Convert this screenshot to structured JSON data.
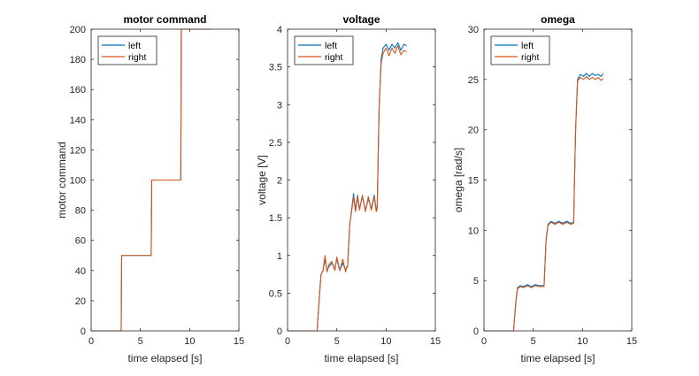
{
  "colors": {
    "left": "#0072BD",
    "right": "#D95319",
    "axis": "#262626",
    "background": "#ffffff"
  },
  "chart_data": [
    {
      "type": "line",
      "title": "motor command",
      "xlabel": "time elapsed [s]",
      "ylabel": "motor command",
      "xlim": [
        0,
        15
      ],
      "ylim": [
        0,
        200
      ],
      "xticks": [
        "0",
        "5",
        "10",
        "15"
      ],
      "yticks": [
        "0",
        "20",
        "40",
        "60",
        "80",
        "100",
        "120",
        "140",
        "160",
        "180",
        "200"
      ],
      "grid": false,
      "legend_position": "top-left",
      "series": [
        {
          "name": "left",
          "points": [
            [
              0,
              0
            ],
            [
              3.05,
              0
            ],
            [
              3.1,
              50
            ],
            [
              6.1,
              50
            ],
            [
              6.15,
              100
            ],
            [
              9.1,
              100
            ],
            [
              9.15,
              200
            ],
            [
              12.1,
              200
            ]
          ]
        },
        {
          "name": "right",
          "points": [
            [
              0,
              0
            ],
            [
              3.05,
              0
            ],
            [
              3.1,
              50
            ],
            [
              6.1,
              50
            ],
            [
              6.15,
              100
            ],
            [
              9.1,
              100
            ],
            [
              9.15,
              200
            ],
            [
              12.1,
              200
            ]
          ]
        }
      ]
    },
    {
      "type": "line",
      "title": "voltage",
      "xlabel": "time elapsed [s]",
      "ylabel": "voltage [V]",
      "xlim": [
        0,
        15
      ],
      "ylim": [
        0,
        4
      ],
      "xticks": [
        "0",
        "5",
        "10",
        "15"
      ],
      "yticks": [
        "0",
        "0.5",
        "1",
        "1.5",
        "2",
        "2.5",
        "3",
        "3.5",
        "4"
      ],
      "grid": false,
      "legend_position": "top-left",
      "series": [
        {
          "name": "left",
          "points": [
            [
              0,
              0
            ],
            [
              3.0,
              0
            ],
            [
              3.2,
              0.4
            ],
            [
              3.4,
              0.75
            ],
            [
              3.6,
              0.8
            ],
            [
              3.8,
              0.95
            ],
            [
              4.0,
              0.8
            ],
            [
              4.2,
              0.85
            ],
            [
              4.5,
              0.9
            ],
            [
              4.8,
              0.82
            ],
            [
              5.0,
              0.95
            ],
            [
              5.3,
              0.8
            ],
            [
              5.6,
              0.9
            ],
            [
              5.9,
              0.8
            ],
            [
              6.0,
              0.85
            ],
            [
              6.1,
              0.85
            ],
            [
              6.3,
              1.4
            ],
            [
              6.5,
              1.6
            ],
            [
              6.7,
              1.82
            ],
            [
              6.9,
              1.6
            ],
            [
              7.1,
              1.8
            ],
            [
              7.3,
              1.62
            ],
            [
              7.6,
              1.78
            ],
            [
              7.9,
              1.6
            ],
            [
              8.2,
              1.75
            ],
            [
              8.5,
              1.62
            ],
            [
              8.8,
              1.8
            ],
            [
              9.0,
              1.6
            ],
            [
              9.1,
              1.65
            ],
            [
              9.3,
              3.0
            ],
            [
              9.5,
              3.6
            ],
            [
              9.7,
              3.75
            ],
            [
              10.0,
              3.8
            ],
            [
              10.3,
              3.72
            ],
            [
              10.6,
              3.8
            ],
            [
              10.9,
              3.75
            ],
            [
              11.2,
              3.82
            ],
            [
              11.5,
              3.72
            ],
            [
              11.8,
              3.8
            ],
            [
              12.1,
              3.78
            ]
          ]
        },
        {
          "name": "right",
          "points": [
            [
              0,
              0
            ],
            [
              3.0,
              0
            ],
            [
              3.2,
              0.4
            ],
            [
              3.4,
              0.75
            ],
            [
              3.6,
              0.8
            ],
            [
              3.8,
              1.0
            ],
            [
              4.0,
              0.78
            ],
            [
              4.2,
              0.88
            ],
            [
              4.5,
              0.92
            ],
            [
              4.8,
              0.8
            ],
            [
              5.0,
              0.98
            ],
            [
              5.3,
              0.8
            ],
            [
              5.6,
              0.95
            ],
            [
              5.9,
              0.78
            ],
            [
              6.0,
              0.85
            ],
            [
              6.1,
              0.85
            ],
            [
              6.3,
              1.4
            ],
            [
              6.5,
              1.58
            ],
            [
              6.7,
              1.78
            ],
            [
              6.9,
              1.58
            ],
            [
              7.1,
              1.78
            ],
            [
              7.3,
              1.6
            ],
            [
              7.6,
              1.8
            ],
            [
              7.9,
              1.58
            ],
            [
              8.2,
              1.78
            ],
            [
              8.5,
              1.6
            ],
            [
              8.8,
              1.78
            ],
            [
              9.0,
              1.58
            ],
            [
              9.1,
              1.62
            ],
            [
              9.3,
              3.0
            ],
            [
              9.5,
              3.55
            ],
            [
              9.7,
              3.68
            ],
            [
              10.0,
              3.75
            ],
            [
              10.3,
              3.65
            ],
            [
              10.6,
              3.75
            ],
            [
              10.9,
              3.68
            ],
            [
              11.2,
              3.78
            ],
            [
              11.5,
              3.66
            ],
            [
              11.8,
              3.72
            ],
            [
              12.1,
              3.7
            ]
          ]
        }
      ]
    },
    {
      "type": "line",
      "title": "omega",
      "xlabel": "time elapsed [s]",
      "ylabel": "omega [rad/s]",
      "xlim": [
        0,
        15
      ],
      "ylim": [
        0,
        30
      ],
      "xticks": [
        "0",
        "5",
        "10",
        "15"
      ],
      "yticks": [
        "0",
        "5",
        "10",
        "15",
        "20",
        "25",
        "30"
      ],
      "grid": false,
      "legend_position": "top-left",
      "series": [
        {
          "name": "left",
          "points": [
            [
              0,
              0
            ],
            [
              3.0,
              0
            ],
            [
              3.2,
              2.5
            ],
            [
              3.4,
              4.3
            ],
            [
              3.7,
              4.5
            ],
            [
              4.0,
              4.4
            ],
            [
              4.4,
              4.6
            ],
            [
              4.8,
              4.4
            ],
            [
              5.2,
              4.6
            ],
            [
              5.6,
              4.5
            ],
            [
              6.0,
              4.5
            ],
            [
              6.1,
              4.5
            ],
            [
              6.3,
              9.0
            ],
            [
              6.5,
              10.6
            ],
            [
              6.8,
              10.9
            ],
            [
              7.2,
              10.7
            ],
            [
              7.6,
              10.9
            ],
            [
              8.0,
              10.7
            ],
            [
              8.4,
              10.9
            ],
            [
              8.8,
              10.7
            ],
            [
              9.1,
              10.8
            ],
            [
              9.3,
              20.0
            ],
            [
              9.5,
              25.0
            ],
            [
              9.8,
              25.5
            ],
            [
              10.1,
              25.3
            ],
            [
              10.4,
              25.6
            ],
            [
              10.7,
              25.3
            ],
            [
              11.0,
              25.6
            ],
            [
              11.3,
              25.4
            ],
            [
              11.6,
              25.5
            ],
            [
              11.9,
              25.3
            ],
            [
              12.1,
              25.6
            ]
          ]
        },
        {
          "name": "right",
          "points": [
            [
              0,
              0
            ],
            [
              3.0,
              0
            ],
            [
              3.2,
              2.5
            ],
            [
              3.4,
              4.2
            ],
            [
              3.7,
              4.4
            ],
            [
              4.0,
              4.3
            ],
            [
              4.4,
              4.5
            ],
            [
              4.8,
              4.3
            ],
            [
              5.2,
              4.5
            ],
            [
              5.6,
              4.4
            ],
            [
              6.0,
              4.4
            ],
            [
              6.1,
              4.4
            ],
            [
              6.3,
              9.0
            ],
            [
              6.5,
              10.5
            ],
            [
              6.8,
              10.8
            ],
            [
              7.2,
              10.6
            ],
            [
              7.6,
              10.8
            ],
            [
              8.0,
              10.6
            ],
            [
              8.4,
              10.8
            ],
            [
              8.8,
              10.6
            ],
            [
              9.1,
              10.7
            ],
            [
              9.3,
              20.0
            ],
            [
              9.5,
              24.9
            ],
            [
              9.8,
              25.2
            ],
            [
              10.1,
              25.0
            ],
            [
              10.4,
              25.3
            ],
            [
              10.7,
              25.0
            ],
            [
              11.0,
              25.2
            ],
            [
              11.3,
              25.0
            ],
            [
              11.6,
              25.2
            ],
            [
              11.9,
              24.9
            ],
            [
              12.1,
              25.1
            ]
          ]
        }
      ]
    }
  ]
}
